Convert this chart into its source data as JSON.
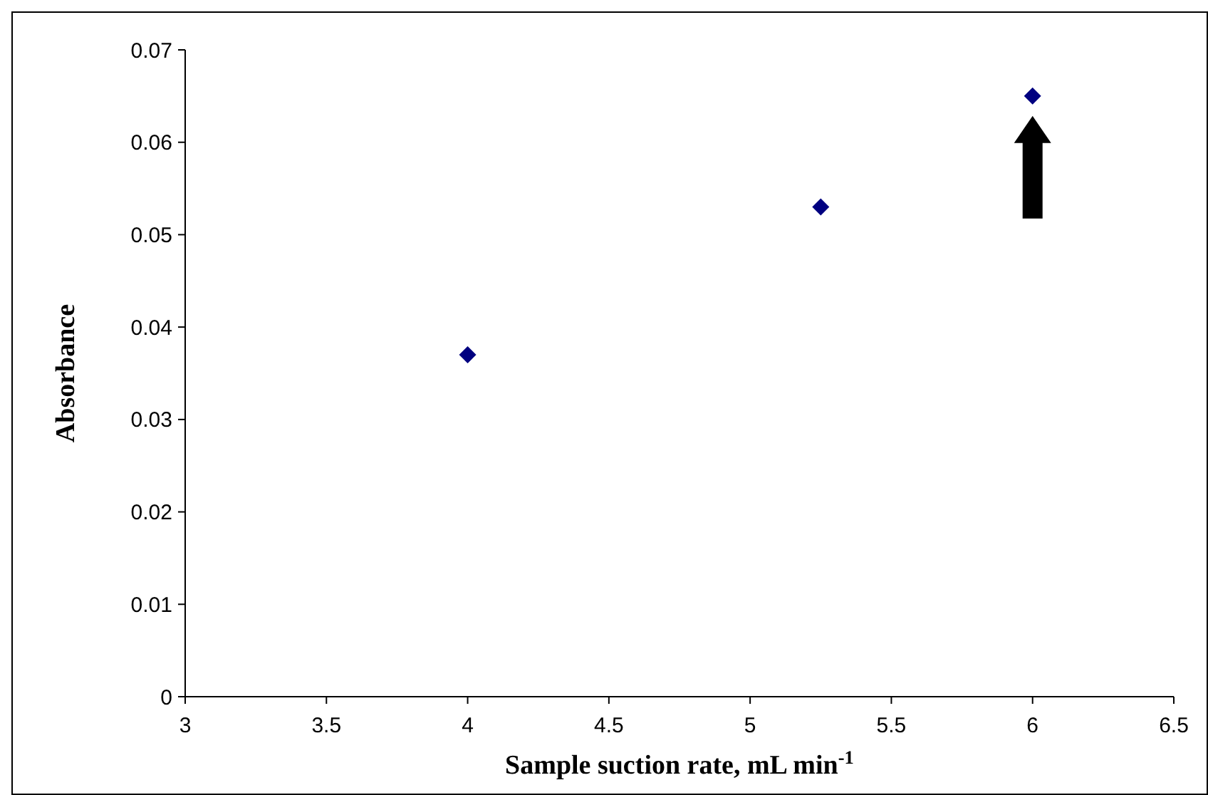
{
  "chart_data": {
    "type": "scatter",
    "xlabel": "Sample suction rate, mL min$^{-1}$",
    "ylabel": "Absorbance",
    "x": [
      4,
      5.25,
      6
    ],
    "series": [
      {
        "color": "#000080",
        "values": [
          0.037,
          0.053,
          0.065
        ]
      }
    ],
    "xlim": [
      3,
      6.5
    ],
    "xticks": [
      3,
      3.5,
      4,
      4.5,
      5,
      5.5,
      6,
      6.5
    ],
    "ylim": [
      0,
      0.07
    ],
    "yticks": [
      0,
      0.01,
      0.02,
      0.03,
      0.04,
      0.05,
      0.06,
      0.07
    ],
    "grid": false,
    "marker": "diamond"
  }
}
